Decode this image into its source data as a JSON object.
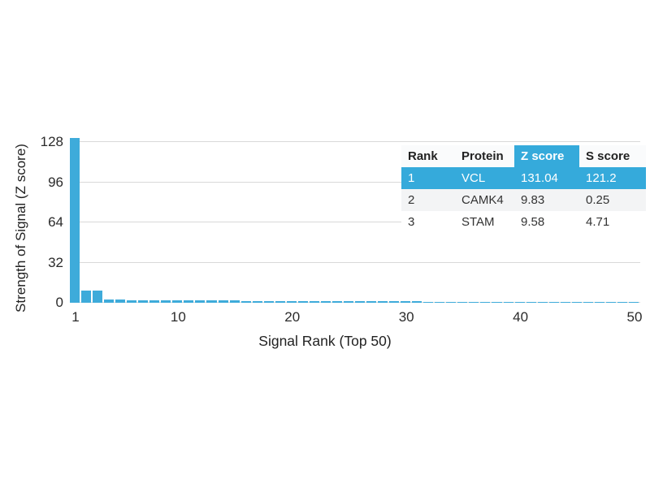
{
  "figure": {
    "background": "#ffffff",
    "accent_color": "#35AADB",
    "bar_color": "#3EABDA",
    "grid_color": "#d9d9d9"
  },
  "chart_data": {
    "type": "bar",
    "title": "",
    "xlabel": "Signal Rank (Top 50)",
    "ylabel": "Strength of Signal (Z score)",
    "x_ticks": [
      1,
      10,
      20,
      30,
      40,
      50
    ],
    "y_ticks": [
      0,
      32,
      64,
      96,
      128
    ],
    "ylim": [
      0,
      137
    ],
    "xlim": [
      1,
      50
    ],
    "grid": true,
    "legend": false,
    "x": [
      1,
      2,
      3,
      4,
      5,
      6,
      7,
      8,
      9,
      10,
      11,
      12,
      13,
      14,
      15,
      16,
      17,
      18,
      19,
      20,
      21,
      22,
      23,
      24,
      25,
      26,
      27,
      28,
      29,
      30,
      31,
      32,
      33,
      34,
      35,
      36,
      37,
      38,
      39,
      40,
      41,
      42,
      43,
      44,
      45,
      46,
      47,
      48,
      49,
      50
    ],
    "values": [
      131.04,
      9.83,
      9.58,
      2.6,
      2.4,
      2.2,
      2.1,
      2.0,
      1.95,
      1.9,
      1.85,
      1.8,
      1.75,
      1.7,
      1.65,
      1.6,
      1.55,
      1.5,
      1.48,
      1.45,
      1.42,
      1.4,
      1.38,
      1.35,
      1.32,
      1.3,
      1.28,
      1.25,
      1.22,
      1.2,
      1.0,
      0.95,
      0.9,
      0.88,
      0.85,
      0.82,
      0.8,
      0.78,
      0.75,
      0.72,
      0.7,
      0.68,
      0.65,
      0.62,
      0.6,
      0.58,
      0.55,
      0.52,
      0.5,
      0.5
    ]
  },
  "table": {
    "headers": {
      "rank": "Rank",
      "protein": "Protein",
      "z_score": "Z score",
      "s_score": "S score"
    },
    "highlighted_header": "Z score",
    "rows": [
      {
        "rank": "1",
        "protein": "VCL",
        "z_score": "131.04",
        "s_score": "121.2",
        "highlighted": true
      },
      {
        "rank": "2",
        "protein": "CAMK4",
        "z_score": "9.83",
        "s_score": "0.25",
        "highlighted": false
      },
      {
        "rank": "3",
        "protein": "STAM",
        "z_score": "9.58",
        "s_score": "4.71",
        "highlighted": false
      }
    ]
  }
}
